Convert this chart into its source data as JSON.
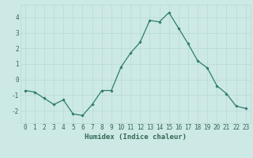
{
  "x": [
    0,
    1,
    2,
    3,
    4,
    5,
    6,
    7,
    8,
    9,
    10,
    11,
    12,
    13,
    14,
    15,
    16,
    17,
    18,
    19,
    20,
    21,
    22,
    23
  ],
  "y": [
    -0.7,
    -0.8,
    -1.2,
    -1.6,
    -1.3,
    -2.2,
    -2.3,
    -1.6,
    -0.7,
    -0.7,
    0.8,
    1.7,
    2.4,
    3.8,
    3.7,
    4.3,
    3.3,
    2.3,
    1.2,
    0.75,
    -0.4,
    -0.9,
    -1.7,
    -1.85
  ],
  "line_color": "#2e7d6e",
  "marker": "D",
  "marker_size": 1.8,
  "linewidth": 0.9,
  "xlabel": "Humidex (Indice chaleur)",
  "xlim": [
    -0.5,
    23.5
  ],
  "ylim": [
    -2.8,
    4.8
  ],
  "yticks": [
    -2,
    -1,
    0,
    1,
    2,
    3,
    4
  ],
  "xticks": [
    0,
    1,
    2,
    3,
    4,
    5,
    6,
    7,
    8,
    9,
    10,
    11,
    12,
    13,
    14,
    15,
    16,
    17,
    18,
    19,
    20,
    21,
    22,
    23
  ],
  "bg_color": "#cce9e5",
  "grid_color": "#b8d8d4",
  "axes_color": "#336655",
  "label_fontsize": 6.5,
  "tick_fontsize": 5.5
}
